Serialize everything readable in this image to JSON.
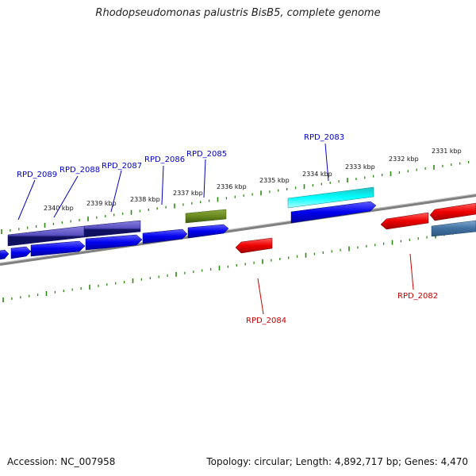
{
  "title": "Rhodopseudomonas palustris BisB5, complete genome",
  "footer": {
    "accession": "Accession: NC_007958",
    "summary": "Topology: circular; Length: 4,892,717 bp; Genes: 4,470"
  },
  "colors": {
    "backbone": "#808080",
    "tick": "#2a8a10",
    "forward_label": "#0000cc",
    "reverse_label": "#cc0000"
  },
  "kbp_labels": [
    "2331 kbp",
    "2332 kbp",
    "2333 kbp",
    "2334 kbp",
    "2335 kbp",
    "2336 kbp",
    "2337 kbp",
    "2338 kbp",
    "2339 kbp",
    "2340 kbp"
  ],
  "forward_gene_labels": [
    "RPD_2083",
    "RPD_2085",
    "RPD_2086",
    "RPD_2087",
    "RPD_2088",
    "RPD_2089"
  ],
  "reverse_gene_labels": [
    "RPD_2082",
    "RPD_2084"
  ]
}
